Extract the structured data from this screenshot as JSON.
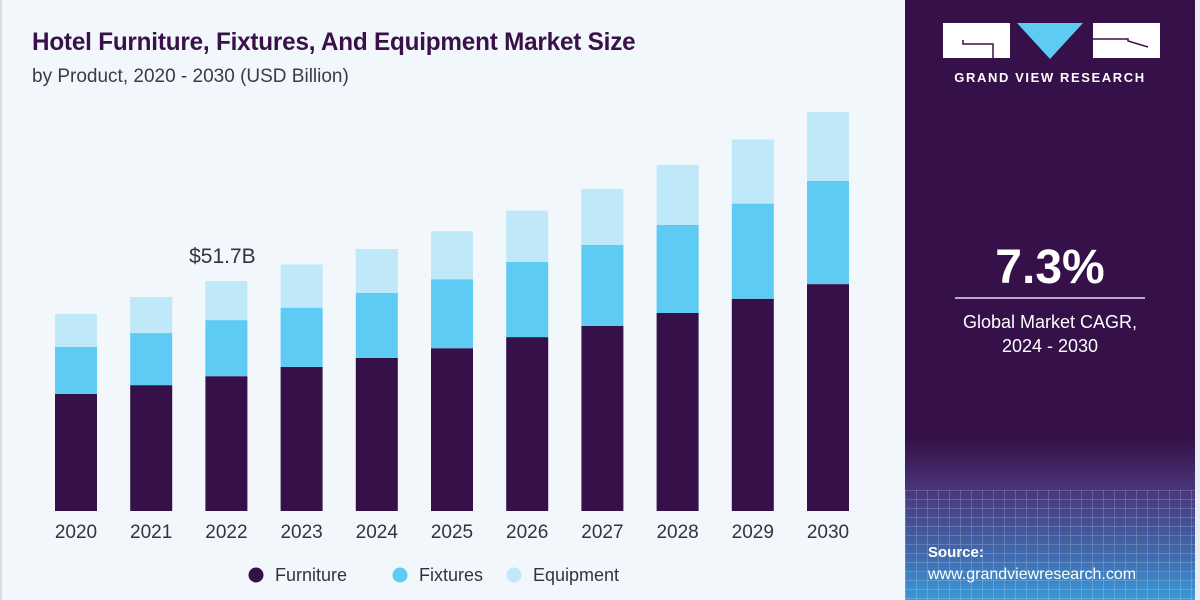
{
  "header": {
    "title": "Hotel Furniture, Fixtures, And Equipment Market Size",
    "subtitle": "by Product, 2020 - 2030 (USD Billion)"
  },
  "brand": {
    "name": "GRAND VIEW RESEARCH",
    "logo_icon": "gvr-logo-icon",
    "panel_color": "#361149",
    "accent_color": "#5ecbf5"
  },
  "highlight": {
    "cagr_value": "7.3%",
    "cagr_label_line1": "Global Market CAGR,",
    "cagr_label_line2": "2024 - 2030"
  },
  "source": {
    "label": "Source:",
    "url": "www.grandviewresearch.com"
  },
  "chart_data": {
    "type": "bar",
    "stacked": true,
    "title": "Hotel Furniture, Fixtures, And Equipment Market Size",
    "subtitle": "by Product, 2020 - 2030 (USD Billion)",
    "xlabel": "",
    "ylabel": "",
    "ylim": [
      0,
      95
    ],
    "grid": false,
    "legend_position": "bottom",
    "categories": [
      "2020",
      "2021",
      "2022",
      "2023",
      "2024",
      "2025",
      "2026",
      "2027",
      "2028",
      "2029",
      "2030"
    ],
    "series": [
      {
        "name": "Furniture",
        "color": "#361149",
        "values": [
          26.3,
          28.3,
          30.3,
          32.4,
          34.4,
          36.6,
          39.1,
          41.6,
          44.5,
          47.7,
          51.0
        ]
      },
      {
        "name": "Fixtures",
        "color": "#5ecbf5",
        "values": [
          10.6,
          11.7,
          12.6,
          13.3,
          14.6,
          15.5,
          16.9,
          18.2,
          19.8,
          21.4,
          23.2
        ]
      },
      {
        "name": "Equipment",
        "color": "#bfe8f9",
        "values": [
          7.4,
          8.1,
          8.8,
          9.7,
          9.9,
          10.8,
          11.5,
          12.6,
          13.5,
          14.4,
          15.5
        ]
      }
    ],
    "annotations": [
      {
        "category": "2022",
        "text": "$51.7B"
      }
    ]
  }
}
